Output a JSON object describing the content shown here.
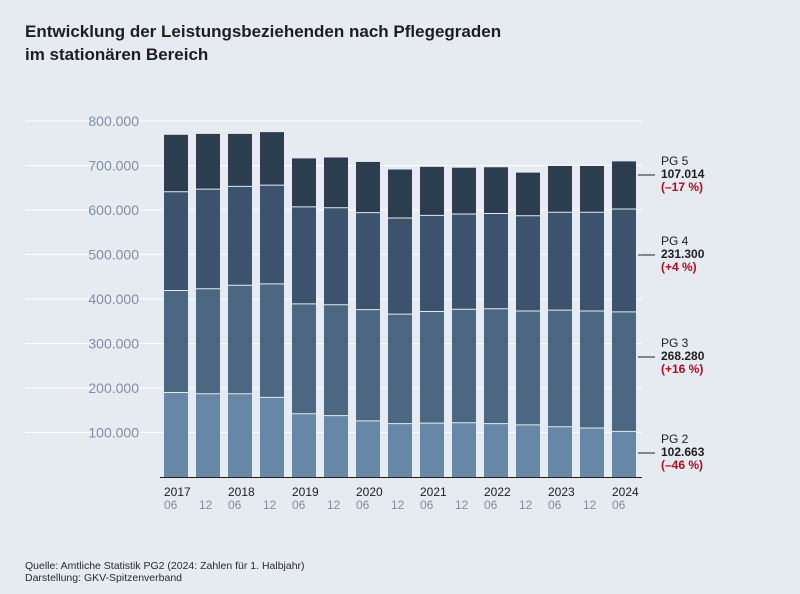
{
  "title_lines": [
    "Entwicklung der Leistungsbeziehenden nach Pflegegraden",
    "im stationären Bereich"
  ],
  "footer": {
    "source": "Quelle: Amtliche Statistik PG2 (2024: Zahlen für 1. Halbjahr)",
    "credit": "Darstellung: GKV-Spitzenverband"
  },
  "colors": {
    "pg2": "#6688a6",
    "pg3": "#4b6882",
    "pg4": "#3b536c",
    "pg5": "#2b3d4f",
    "negative": "#b30b1e"
  },
  "chart_data": {
    "type": "bar",
    "stacked": true,
    "title": "Entwicklung der Leistungsbeziehenden nach Pflegegraden im stationären Bereich",
    "ylim": [
      0,
      800000
    ],
    "y_ticks": [
      100000,
      200000,
      300000,
      400000,
      500000,
      600000,
      700000,
      800000
    ],
    "y_tick_labels": [
      "100.000",
      "200.000",
      "300.000",
      "400.000",
      "500.000",
      "600.000",
      "700.000",
      "800.000"
    ],
    "categories": [
      {
        "year": "2017",
        "month": "06"
      },
      {
        "year": "",
        "month": "12"
      },
      {
        "year": "2018",
        "month": "06"
      },
      {
        "year": "",
        "month": "12"
      },
      {
        "year": "2019",
        "month": "06"
      },
      {
        "year": "",
        "month": "12"
      },
      {
        "year": "2020",
        "month": "06"
      },
      {
        "year": "",
        "month": "12"
      },
      {
        "year": "2021",
        "month": "06"
      },
      {
        "year": "",
        "month": "12"
      },
      {
        "year": "2022",
        "month": "06"
      },
      {
        "year": "",
        "month": "12"
      },
      {
        "year": "2023",
        "month": "06"
      },
      {
        "year": "",
        "month": "12"
      },
      {
        "year": "2024",
        "month": "06"
      }
    ],
    "series": [
      {
        "key": "pg2",
        "values": [
          190000,
          187000,
          187000,
          179000,
          142000,
          138000,
          126000,
          120000,
          121000,
          122000,
          120000,
          117000,
          113000,
          110000,
          102663
        ]
      },
      {
        "key": "pg3",
        "values": [
          229000,
          236000,
          244000,
          255000,
          247000,
          249000,
          250000,
          246000,
          251000,
          255000,
          258000,
          256000,
          262000,
          263000,
          268280
        ]
      },
      {
        "key": "pg4",
        "values": [
          222000,
          224000,
          222000,
          222000,
          218000,
          218000,
          218000,
          216000,
          216000,
          214000,
          214000,
          214000,
          220000,
          222000,
          231300
        ]
      },
      {
        "key": "pg5",
        "values": [
          128000,
          124000,
          118000,
          119000,
          109000,
          113000,
          114000,
          109000,
          109000,
          104000,
          104000,
          97000,
          104000,
          104000,
          107014
        ]
      }
    ],
    "annotations": [
      {
        "series": "pg5",
        "label": "PG 5",
        "value": "107.014",
        "change": "(–17 %)"
      },
      {
        "series": "pg4",
        "label": "PG 4",
        "value": "231.300",
        "change": "(+4 %)"
      },
      {
        "series": "pg3",
        "label": "PG 3",
        "value": "268.280",
        "change": "(+16 %)"
      },
      {
        "series": "pg2",
        "label": "PG 2",
        "value": "102.663",
        "change": "(–46 %)"
      }
    ]
  }
}
